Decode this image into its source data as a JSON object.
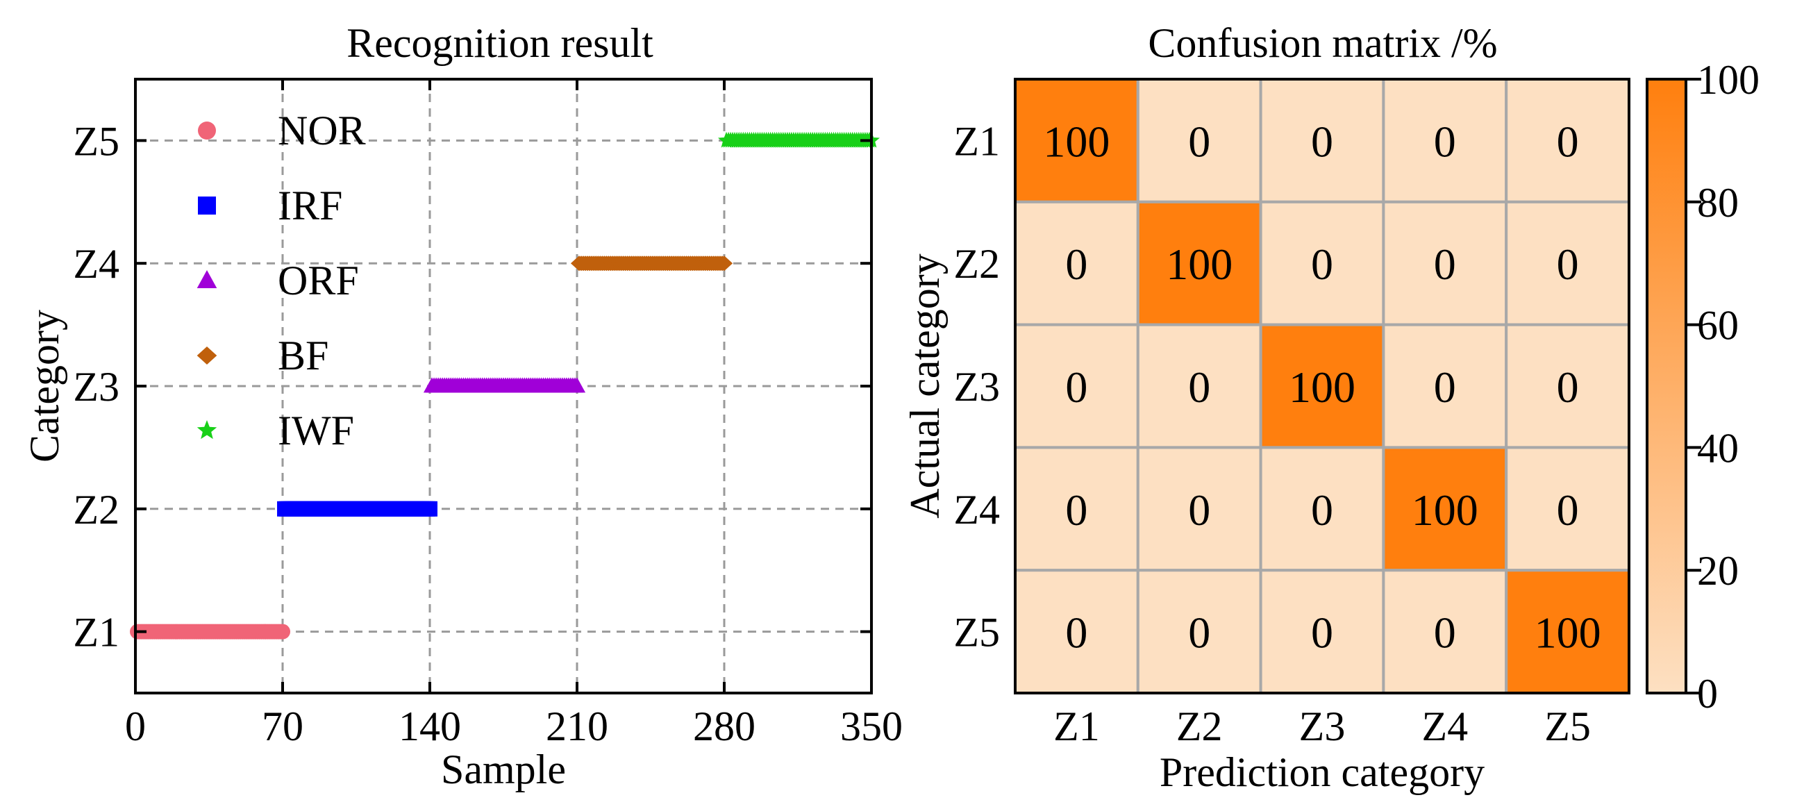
{
  "chart_data": [
    {
      "type": "scatter",
      "title": "Recognition result",
      "xlabel": "Sample",
      "ylabel": "Category",
      "xlim": [
        0,
        350
      ],
      "xticks": [
        0,
        70,
        140,
        210,
        280,
        350
      ],
      "ylim": [
        0.5,
        5.5
      ],
      "yticks": [
        "Z1",
        "Z2",
        "Z3",
        "Z4",
        "Z5"
      ],
      "grid": true,
      "legend_position": "top-left",
      "series": [
        {
          "name": "NOR",
          "color": "#f06477",
          "marker": "circle",
          "category": "Z1",
          "x_range": [
            1,
            70
          ]
        },
        {
          "name": "IRF",
          "color": "#0000ff",
          "marker": "square",
          "category": "Z2",
          "x_range": [
            71,
            140
          ]
        },
        {
          "name": "ORF",
          "color": "#a000d8",
          "marker": "triangle",
          "category": "Z3",
          "x_range": [
            141,
            210
          ]
        },
        {
          "name": "BF",
          "color": "#c0600c",
          "marker": "diamond",
          "category": "Z4",
          "x_range": [
            211,
            280
          ]
        },
        {
          "name": "IWF",
          "color": "#18d018",
          "marker": "star",
          "category": "Z5",
          "x_range": [
            281,
            350
          ]
        }
      ]
    },
    {
      "type": "heatmap",
      "title": "Confusion matrix /%",
      "xlabel": "Prediction category",
      "ylabel": "Actual category",
      "x_categories": [
        "Z1",
        "Z2",
        "Z3",
        "Z4",
        "Z5"
      ],
      "y_categories": [
        "Z1",
        "Z2",
        "Z3",
        "Z4",
        "Z5"
      ],
      "values": [
        [
          100,
          0,
          0,
          0,
          0
        ],
        [
          0,
          100,
          0,
          0,
          0
        ],
        [
          0,
          0,
          100,
          0,
          0
        ],
        [
          0,
          0,
          0,
          100,
          0
        ],
        [
          0,
          0,
          0,
          0,
          100
        ]
      ],
      "colorbar": {
        "min": 0,
        "max": 100,
        "ticks": [
          0,
          20,
          40,
          60,
          80,
          100
        ],
        "low_color": "#fde0c2",
        "high_color": "#ff7f0e"
      }
    }
  ]
}
